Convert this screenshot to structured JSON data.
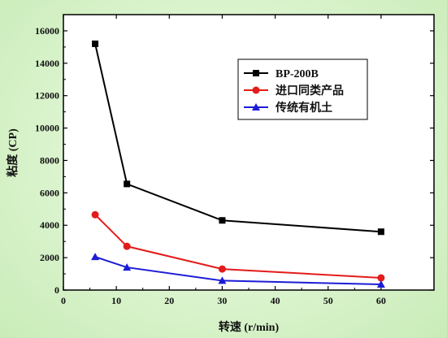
{
  "chart_data": {
    "type": "line",
    "title": "",
    "xlabel": "转速 (r/min)",
    "ylabel": "粘度 (CP)",
    "xlim": [
      0,
      70
    ],
    "ylim": [
      0,
      17000
    ],
    "xticks": [
      0,
      10,
      20,
      30,
      40,
      50,
      60
    ],
    "yticks": [
      0,
      2000,
      4000,
      6000,
      8000,
      10000,
      12000,
      14000,
      16000
    ],
    "grid": false,
    "legend_position": "top-right",
    "x": [
      6,
      12,
      30,
      60
    ],
    "series": [
      {
        "name": "BP-200B",
        "color": "#000000",
        "marker": "square",
        "values": [
          15200,
          6550,
          4300,
          3600
        ]
      },
      {
        "name": "进口同类产品",
        "color": "#e41b1b",
        "marker": "circle",
        "values": [
          4650,
          2700,
          1300,
          750
        ]
      },
      {
        "name": "传统有机土",
        "color": "#1c1cd6",
        "marker": "triangle",
        "values": [
          2050,
          1400,
          580,
          350
        ]
      }
    ]
  }
}
